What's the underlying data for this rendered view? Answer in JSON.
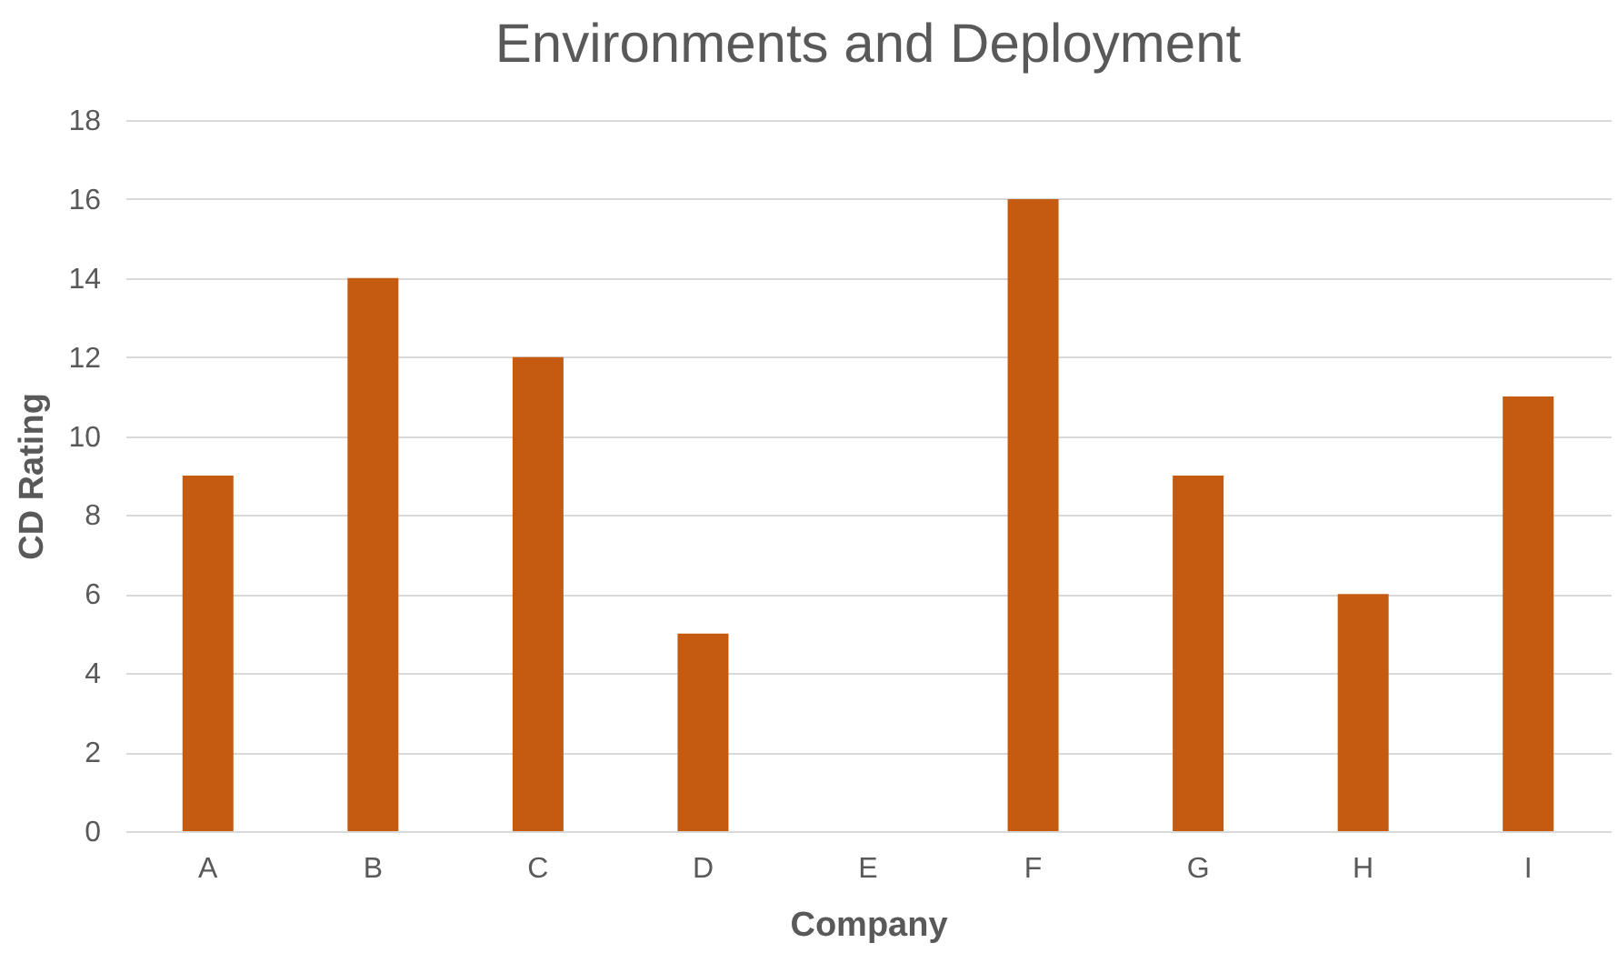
{
  "chart_data": {
    "type": "bar",
    "title": "Environments and Deployment",
    "xlabel": "Company",
    "ylabel": "CD Rating",
    "categories": [
      "A",
      "B",
      "C",
      "D",
      "E",
      "F",
      "G",
      "H",
      "I"
    ],
    "values": [
      9,
      14,
      12,
      5,
      0,
      16,
      9,
      6,
      11
    ],
    "color": "#c55a11",
    "ylim": [
      0,
      18
    ],
    "yticks": [
      0,
      2,
      4,
      6,
      8,
      10,
      12,
      14,
      16,
      18
    ],
    "grid": "y"
  }
}
